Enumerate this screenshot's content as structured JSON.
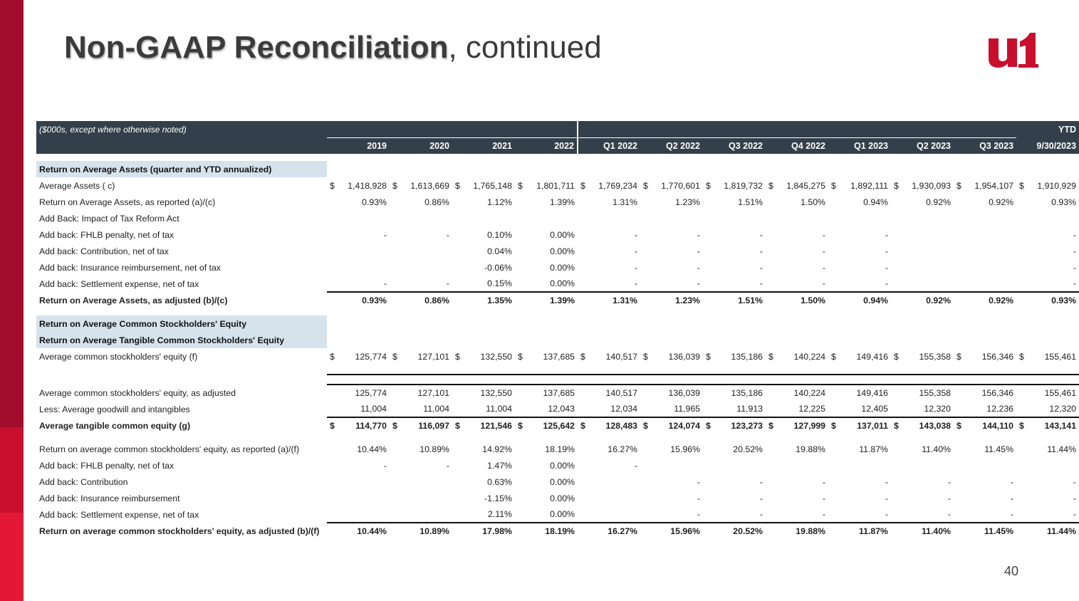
{
  "title": {
    "bold": "Non-GAAP Reconciliation",
    "rest": ", continued"
  },
  "page_number": "40",
  "brand_colors": {
    "dark_red": "#a30d2d",
    "red": "#c8102e",
    "bright_red": "#e31837",
    "header_bg": "#333f4a",
    "section_bg": "#d6e3ec"
  },
  "table": {
    "note": "($000s, except where otherwise noted)",
    "ytd_label": "YTD",
    "columns": [
      "2019",
      "2020",
      "2021",
      "2022",
      "Q1 2022",
      "Q2 2022",
      "Q3 2022",
      "Q4 2022",
      "Q1 2023",
      "Q2 2023",
      "Q3 2023",
      "9/30/2023"
    ],
    "section1_title": "Return on Average Assets (quarter and YTD annualized)",
    "avg_assets": {
      "label": "Average Assets ( c)",
      "values": [
        "1,418,928",
        "1,613,669",
        "1,765,148",
        "1,801,711",
        "1,769,234",
        "1,770,601",
        "1,819,732",
        "1,845,275",
        "1,892,111",
        "1,930,093",
        "1,954,107",
        "1,910,929"
      ]
    },
    "roaa_reported": {
      "label": "Return on Average Assets, as reported (a)/(c)",
      "values": [
        "0.93%",
        "0.86%",
        "1.12%",
        "1.39%",
        "1.31%",
        "1.23%",
        "1.51%",
        "1.50%",
        "0.94%",
        "0.92%",
        "0.92%",
        "0.93%"
      ]
    },
    "add_tax_reform": {
      "label": "Add Back: Impact of Tax Reform Act",
      "values": [
        "",
        "",
        "",
        "",
        "",
        "",
        "",
        "",
        "",
        "",
        "",
        ""
      ]
    },
    "add_fhlb": {
      "label": "Add back: FHLB penalty, net of tax",
      "values": [
        "-",
        "-",
        "0.10%",
        "0.00%",
        "-",
        "-",
        "-",
        "-",
        "-",
        "",
        "",
        "-"
      ]
    },
    "add_contribution": {
      "label": "Add back: Contribution, net of tax",
      "values": [
        "",
        "",
        "0.04%",
        "0.00%",
        "-",
        "-",
        "-",
        "-",
        "-",
        "",
        "",
        "-"
      ]
    },
    "add_insurance": {
      "label": "Add back: Insurance reimbursement, net of tax",
      "values": [
        "",
        "",
        "-0.06%",
        "0.00%",
        "-",
        "-",
        "-",
        "-",
        "-",
        "",
        "",
        "-"
      ]
    },
    "add_settlement": {
      "label": "Add back: Settlement expense, net of tax",
      "values": [
        "-",
        "-",
        "0.15%",
        "0.00%",
        "-",
        "-",
        "-",
        "-",
        "-",
        "",
        "",
        "-"
      ]
    },
    "roaa_adjusted": {
      "label": "Return on Average Assets, as adjusted (b)/(c)",
      "values": [
        "0.93%",
        "0.86%",
        "1.35%",
        "1.39%",
        "1.31%",
        "1.23%",
        "1.51%",
        "1.50%",
        "0.94%",
        "0.92%",
        "0.92%",
        "0.93%"
      ]
    },
    "section2_title_a": "Return on Average Common Stockholders' Equity",
    "section2_title_b": "Return on Average Tangible Common Stockholders' Equity",
    "avg_equity": {
      "label": "Average common stockholders' equity (f)",
      "values": [
        "125,774",
        "127,101",
        "132,550",
        "137,685",
        "140,517",
        "136,039",
        "135,186",
        "140,224",
        "149,416",
        "155,358",
        "156,346",
        "155,461"
      ]
    },
    "avg_equity_adj": {
      "label": "Average common stockholders' equity, as adjusted",
      "values": [
        "125,774",
        "127,101",
        "132,550",
        "137,685",
        "140,517",
        "136,039",
        "135,186",
        "140,224",
        "149,416",
        "155,358",
        "156,346",
        "155,461"
      ]
    },
    "less_goodwill": {
      "label": "Less: Average goodwill and intangibles",
      "values": [
        "11,004",
        "11,004",
        "11,004",
        "12,043",
        "12,034",
        "11,965",
        "11,913",
        "12,225",
        "12,405",
        "12,320",
        "12,236",
        "12,320"
      ]
    },
    "avg_tangible": {
      "label": "Average tangible common equity (g)",
      "values": [
        "114,770",
        "116,097",
        "121,546",
        "125,642",
        "128,483",
        "124,074",
        "123,273",
        "127,999",
        "137,011",
        "143,038",
        "144,110",
        "143,141"
      ]
    },
    "roe_reported": {
      "label": "Return on average common stockholders' equity, as reported (a)/(f)",
      "values": [
        "10.44%",
        "10.89%",
        "14.92%",
        "18.19%",
        "16.27%",
        "15.96%",
        "20.52%",
        "19.88%",
        "11.87%",
        "11.40%",
        "11.45%",
        "11.44%"
      ]
    },
    "roe_fhlb": {
      "label": "Add back: FHLB penalty, net of tax",
      "values": [
        "-",
        "-",
        "1.47%",
        "0.00%",
        "-",
        "",
        "",
        "",
        "",
        "",
        "",
        ""
      ]
    },
    "roe_contribution": {
      "label": "Add back: Contribution",
      "values": [
        "",
        "",
        "0.63%",
        "0.00%",
        "",
        "-",
        "-",
        "-",
        "-",
        "-",
        "-",
        "-"
      ]
    },
    "roe_insurance": {
      "label": "Add back: Insurance reimbursement",
      "values": [
        "",
        "",
        "-1.15%",
        "0.00%",
        "",
        "-",
        "-",
        "-",
        "-",
        "-",
        "-",
        "-"
      ]
    },
    "roe_settlement": {
      "label": "Add back: Settlement expense, net of tax",
      "values": [
        "",
        "",
        "2.11%",
        "0.00%",
        "",
        "-",
        "-",
        "-",
        "-",
        "-",
        "-",
        "-"
      ]
    },
    "roe_adjusted": {
      "label": "Return on average common stockholders' equity, as adjusted (b)/(f)",
      "values": [
        "10.44%",
        "10.89%",
        "17.98%",
        "18.19%",
        "16.27%",
        "15.96%",
        "20.52%",
        "19.88%",
        "11.87%",
        "11.40%",
        "11.45%",
        "11.44%"
      ]
    },
    "dollar": "$"
  }
}
